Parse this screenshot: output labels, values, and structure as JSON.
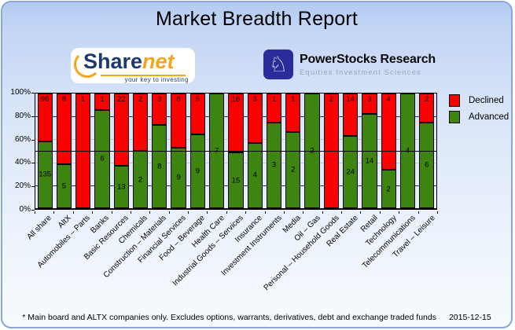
{
  "window": {
    "title": "Market Breadth Report"
  },
  "logos": {
    "sharenet": {
      "name_primary": "Share",
      "name_secondary": "net",
      "tagline": "your key to investing",
      "accent_color": "#f2a61d",
      "text_color": "#1c3a6e"
    },
    "powerstocks": {
      "title": "PowerStocks  Research",
      "subtitle": "Equities Investment Sciences",
      "icon": "knight-chess-icon",
      "icon_glyph": "♘",
      "icon_bg": "#2b2b9b"
    }
  },
  "chart_data": {
    "type": "bar",
    "stacked": true,
    "normalized": "percent",
    "title": "",
    "xlabel": "",
    "ylabel": "",
    "ylim": [
      0,
      100
    ],
    "y_ticks": [
      "0%",
      "20%",
      "40%",
      "60%",
      "80%",
      "100%"
    ],
    "gridlines": {
      "navy_pct": [
        20,
        80
      ],
      "gray_pct": [
        40,
        60
      ],
      "reference_line_pct": 50
    },
    "legend_position": "right",
    "categories": [
      "All share",
      "AltX",
      "Automobiles – Parts",
      "Banks",
      "Basic Resources",
      "Chemicals",
      "Construction – Materials",
      "Financial Services",
      "Food – Beverage",
      "Health Care",
      "Industrial Goods – Services",
      "Insurance",
      "Investment Instruments",
      "Media",
      "Oil – Gas",
      "Personal – Household Goods",
      "Real Estate",
      "Retail",
      "Technology",
      "Telecommunications",
      "Travel – Leisure"
    ],
    "series": [
      {
        "name": "Declined",
        "color": "#fb0000",
        "values": [
          96,
          8,
          1,
          1,
          22,
          2,
          3,
          8,
          5,
          0,
          16,
          3,
          1,
          1,
          0,
          2,
          14,
          3,
          4,
          0,
          2
        ]
      },
      {
        "name": "Advanced",
        "color": "#3e8410",
        "values": [
          135,
          5,
          0,
          6,
          13,
          2,
          8,
          9,
          9,
          7,
          15,
          4,
          3,
          2,
          2,
          0,
          24,
          14,
          2,
          4,
          6
        ]
      }
    ]
  },
  "legend": {
    "items": [
      {
        "label": "Declined",
        "color": "#fb0000"
      },
      {
        "label": "Advanced",
        "color": "#3e8410"
      }
    ]
  },
  "footer": {
    "note": "* Main board and ALTX companies only. Excludes options, warrants, derivatives, debt and exchange traded funds",
    "date": "2015-12-15"
  }
}
